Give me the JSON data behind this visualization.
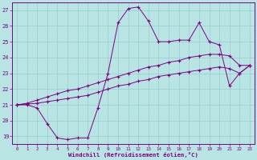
{
  "xlabel": "Windchill (Refroidissement éolien,°C)",
  "background_color": "#b8e4e4",
  "grid_color": "#99cccc",
  "line_color": "#800080",
  "xlim_min": -0.5,
  "xlim_max": 23.5,
  "ylim_min": 18.5,
  "ylim_max": 27.5,
  "yticks": [
    19,
    20,
    21,
    22,
    23,
    24,
    25,
    26,
    27
  ],
  "xticks": [
    0,
    1,
    2,
    3,
    4,
    5,
    6,
    7,
    8,
    9,
    10,
    11,
    12,
    13,
    14,
    15,
    16,
    17,
    18,
    19,
    20,
    21,
    22,
    23
  ],
  "lines": [
    {
      "x": [
        0,
        1,
        2,
        3,
        4,
        5,
        6,
        7,
        8,
        9,
        10,
        11,
        12,
        13,
        14,
        15,
        16,
        17,
        18,
        19,
        20,
        21,
        22,
        23
      ],
      "y": [
        21,
        21,
        20.8,
        19.8,
        18.9,
        18.8,
        18.9,
        18.9,
        20.8,
        23.0,
        26.2,
        27.1,
        27.2,
        26.3,
        25.0,
        25.0,
        25.1,
        25.1,
        26.2,
        25.0,
        24.8,
        22.2,
        23.0,
        23.5
      ]
    },
    {
      "x": [
        0,
        1,
        2,
        3,
        4,
        5,
        6,
        7,
        8,
        9,
        10,
        11,
        12,
        13,
        14,
        15,
        16,
        17,
        18,
        19,
        20,
        21,
        22,
        23
      ],
      "y": [
        21,
        21.1,
        21.3,
        21.5,
        21.7,
        21.9,
        22.0,
        22.2,
        22.4,
        22.6,
        22.8,
        23.0,
        23.2,
        23.4,
        23.5,
        23.7,
        23.8,
        24.0,
        24.1,
        24.2,
        24.2,
        24.1,
        23.5,
        23.5
      ]
    },
    {
      "x": [
        0,
        1,
        2,
        3,
        4,
        5,
        6,
        7,
        8,
        9,
        10,
        11,
        12,
        13,
        14,
        15,
        16,
        17,
        18,
        19,
        20,
        21,
        22,
        23
      ],
      "y": [
        21,
        21.05,
        21.1,
        21.2,
        21.3,
        21.4,
        21.5,
        21.6,
        21.8,
        22.0,
        22.2,
        22.3,
        22.5,
        22.6,
        22.8,
        22.9,
        23.0,
        23.1,
        23.2,
        23.3,
        23.4,
        23.3,
        23.0,
        23.5
      ]
    }
  ]
}
